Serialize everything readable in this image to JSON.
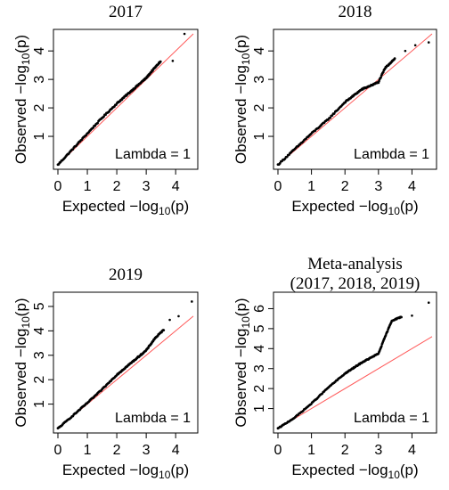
{
  "chart_data": [
    {
      "type": "scatter",
      "title": "2017",
      "xlabel": "Expected −log₁₀(p)",
      "ylabel": "Observed −log₁₀(p)",
      "xlim": [
        0,
        4.6
      ],
      "ylim": [
        0,
        4.6
      ],
      "x_ticks": [
        "0",
        "1",
        "2",
        "3",
        "4"
      ],
      "y_ticks": [
        "1",
        "2",
        "3",
        "4"
      ],
      "reference_line": "y = x",
      "reference_color": "#ff5a5a",
      "point_color": "#000000",
      "annotation": "Lambda = 1",
      "curve": [
        [
          0,
          0
        ],
        [
          0.5,
          0.55
        ],
        [
          1,
          1.1
        ],
        [
          1.5,
          1.65
        ],
        [
          2,
          2.15
        ],
        [
          2.5,
          2.6
        ],
        [
          3,
          3.05
        ],
        [
          3.2,
          3.3
        ],
        [
          3.5,
          3.65
        ]
      ],
      "outliers": [
        [
          3.9,
          3.65
        ],
        [
          4.3,
          4.6
        ]
      ]
    },
    {
      "type": "scatter",
      "title": "2018",
      "xlabel": "Expected −log₁₀(p)",
      "ylabel": "Observed −log₁₀(p)",
      "xlim": [
        0,
        4.6
      ],
      "ylim": [
        0,
        4.6
      ],
      "x_ticks": [
        "0",
        "1",
        "2",
        "3",
        "4"
      ],
      "y_ticks": [
        "1",
        "2",
        "3",
        "4"
      ],
      "reference_line": "y = x",
      "reference_color": "#ff5a5a",
      "point_color": "#000000",
      "annotation": "Lambda = 1",
      "curve": [
        [
          0,
          0
        ],
        [
          0.5,
          0.55
        ],
        [
          1,
          1.1
        ],
        [
          1.5,
          1.6
        ],
        [
          2,
          2.2
        ],
        [
          2.5,
          2.65
        ],
        [
          3,
          2.9
        ],
        [
          3.2,
          3.4
        ],
        [
          3.5,
          3.75
        ]
      ],
      "outliers": [
        [
          3.8,
          4.0
        ],
        [
          4.1,
          4.2
        ],
        [
          4.5,
          4.3
        ]
      ]
    },
    {
      "type": "scatter",
      "title": "2019",
      "xlabel": "Expected −log₁₀(p)",
      "ylabel": "Observed −log₁₀(p)",
      "xlim": [
        0,
        4.6
      ],
      "ylim": [
        0,
        5.4
      ],
      "x_ticks": [
        "0",
        "1",
        "2",
        "3",
        "4"
      ],
      "y_ticks": [
        "1",
        "2",
        "3",
        "4",
        "5"
      ],
      "reference_line": "y = x",
      "reference_color": "#ff5a5a",
      "point_color": "#000000",
      "annotation": "Lambda = 1",
      "curve": [
        [
          0,
          0
        ],
        [
          0.5,
          0.52
        ],
        [
          1,
          1.05
        ],
        [
          1.5,
          1.6
        ],
        [
          2,
          2.2
        ],
        [
          2.5,
          2.7
        ],
        [
          3,
          3.2
        ],
        [
          3.3,
          3.7
        ],
        [
          3.6,
          4.05
        ]
      ],
      "outliers": [
        [
          3.8,
          4.45
        ],
        [
          4.1,
          4.6
        ],
        [
          4.55,
          5.2
        ]
      ]
    },
    {
      "type": "scatter",
      "title": [
        "Meta-analysis",
        "(2017, 2018, 2019)"
      ],
      "xlabel": "Expected −log₁₀(p)",
      "ylabel": "Observed −log₁₀(p)",
      "xlim": [
        0,
        4.6
      ],
      "ylim": [
        0,
        6.6
      ],
      "x_ticks": [
        "0",
        "1",
        "2",
        "3",
        "4"
      ],
      "y_ticks": [
        "1",
        "2",
        "3",
        "4",
        "5",
        "6"
      ],
      "reference_line": "y = x",
      "reference_color": "#ff5a5a",
      "point_color": "#000000",
      "annotation": "Lambda = 1",
      "curve": [
        [
          0,
          0
        ],
        [
          0.5,
          0.55
        ],
        [
          1,
          1.25
        ],
        [
          1.5,
          2.05
        ],
        [
          2,
          2.75
        ],
        [
          2.5,
          3.3
        ],
        [
          3,
          3.75
        ],
        [
          3.2,
          4.6
        ],
        [
          3.4,
          5.4
        ],
        [
          3.7,
          5.6
        ]
      ],
      "outliers": [
        [
          4.0,
          5.65
        ],
        [
          4.5,
          6.3
        ]
      ]
    }
  ]
}
